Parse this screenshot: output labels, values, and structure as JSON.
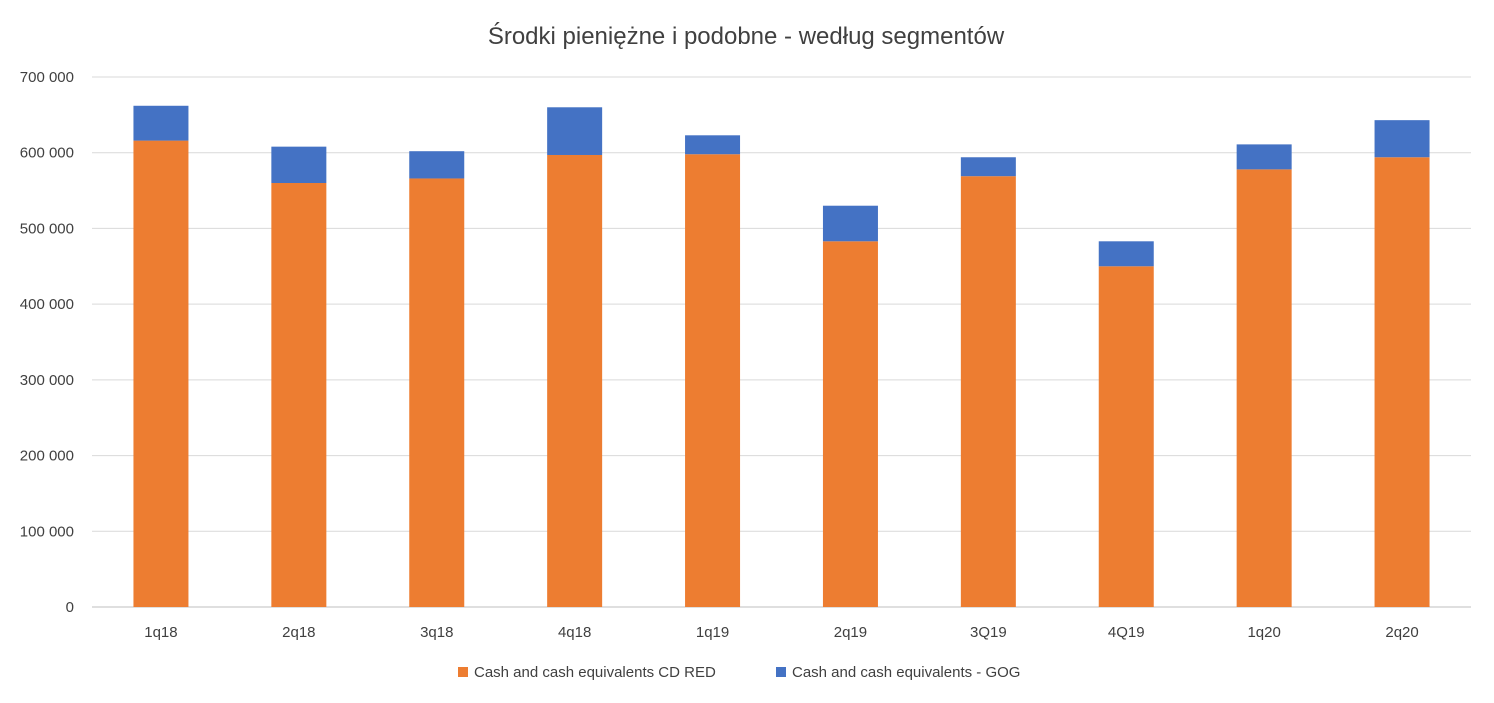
{
  "chart_data": {
    "type": "bar",
    "stacked": true,
    "title": "Środki pieniężne i podobne - według segmentów",
    "xlabel": "",
    "ylabel": "",
    "ylim": [
      0,
      700000
    ],
    "y_ticks": [
      0,
      100000,
      200000,
      300000,
      400000,
      500000,
      600000,
      700000
    ],
    "y_tick_labels": [
      "0",
      "100 000",
      "200 000",
      "300 000",
      "400 000",
      "500 000",
      "600 000",
      "700 000"
    ],
    "grid": true,
    "legend_position": "bottom",
    "categories": [
      "1q18",
      "2q18",
      "3q18",
      "4q18",
      "1q19",
      "2q19",
      "3Q19",
      "4Q19",
      "1q20",
      "2q20"
    ],
    "series": [
      {
        "name": "Cash and cash equivalents CD RED",
        "color": "#ED7D31",
        "values": [
          616000,
          560000,
          566000,
          597000,
          598000,
          483000,
          569000,
          450000,
          578000,
          594000
        ]
      },
      {
        "name": "Cash and cash equivalents - GOG",
        "color": "#4472C4",
        "values": [
          46000,
          48000,
          36000,
          63000,
          25000,
          47000,
          25000,
          33000,
          33000,
          49000
        ]
      }
    ]
  }
}
